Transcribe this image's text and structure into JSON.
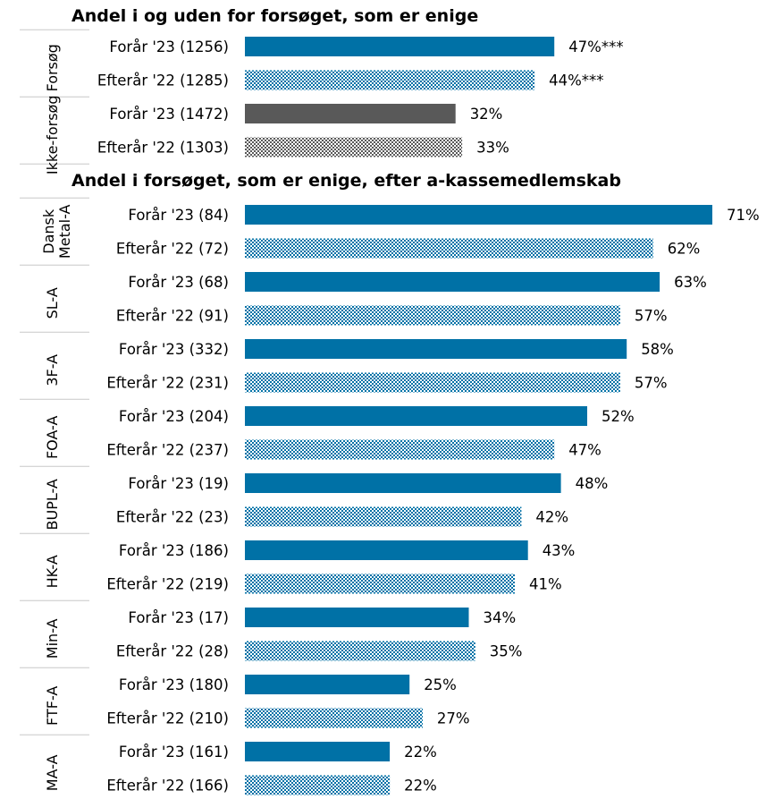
{
  "colors": {
    "forsog": "#0071a6",
    "ikke_forsog": "#595959",
    "pattern_light": "#ffffff"
  },
  "chart_data": {
    "type": "bar",
    "orientation": "horizontal",
    "unit": "%",
    "xlim": [
      0,
      71
    ],
    "grid": false,
    "panels": [
      {
        "title": "Andel i og uden for forsøget, som er enige",
        "groups": [
          {
            "name": "Forsøg",
            "color_key": "forsog",
            "bars": [
              {
                "label": "Forår '23 (1256)",
                "value": 47,
                "value_label": "47%***",
                "pattern": "solid"
              },
              {
                "label": "Efterår '22 (1285)",
                "value": 44,
                "value_label": "44%***",
                "pattern": "checker"
              }
            ]
          },
          {
            "name": "Ikke-forsøg",
            "color_key": "ikke_forsog",
            "bars": [
              {
                "label": "Forår '23 (1472)",
                "value": 32,
                "value_label": "32%",
                "pattern": "solid"
              },
              {
                "label": "Efterår '22 (1303)",
                "value": 33,
                "value_label": "33%",
                "pattern": "checker"
              }
            ]
          }
        ]
      },
      {
        "title": "Andel i forsøget, som er enige, efter a-kassemedlemskab",
        "groups": [
          {
            "name": "Dansk Metal-A",
            "name_lines": [
              "Dansk",
              "Metal-A"
            ],
            "color_key": "forsog",
            "bars": [
              {
                "label": "Forår '23 (84)",
                "value": 71,
                "value_label": "71%",
                "pattern": "solid"
              },
              {
                "label": "Efterår '22 (72)",
                "value": 62,
                "value_label": "62%",
                "pattern": "checker"
              }
            ]
          },
          {
            "name": "SL-A",
            "color_key": "forsog",
            "bars": [
              {
                "label": "Forår '23 (68)",
                "value": 63,
                "value_label": "63%",
                "pattern": "solid"
              },
              {
                "label": "Efterår '22 (91)",
                "value": 57,
                "value_label": "57%",
                "pattern": "checker"
              }
            ]
          },
          {
            "name": "3F-A",
            "color_key": "forsog",
            "bars": [
              {
                "label": "Forår '23 (332)",
                "value": 58,
                "value_label": "58%",
                "pattern": "solid"
              },
              {
                "label": "Efterår '22 (231)",
                "value": 57,
                "value_label": "57%",
                "pattern": "checker"
              }
            ]
          },
          {
            "name": "FOA-A",
            "color_key": "forsog",
            "bars": [
              {
                "label": "Forår '23 (204)",
                "value": 52,
                "value_label": "52%",
                "pattern": "solid"
              },
              {
                "label": "Efterår '22 (237)",
                "value": 47,
                "value_label": "47%",
                "pattern": "checker"
              }
            ]
          },
          {
            "name": "BUPL-A",
            "color_key": "forsog",
            "bars": [
              {
                "label": "Forår '23 (19)",
                "value": 48,
                "value_label": "48%",
                "pattern": "solid"
              },
              {
                "label": "Efterår '22 (23)",
                "value": 42,
                "value_label": "42%",
                "pattern": "checker"
              }
            ]
          },
          {
            "name": "HK-A",
            "color_key": "forsog",
            "bars": [
              {
                "label": "Forår '23 (186)",
                "value": 43,
                "value_label": "43%",
                "pattern": "solid"
              },
              {
                "label": "Efterår '22 (219)",
                "value": 41,
                "value_label": "41%",
                "pattern": "checker"
              }
            ]
          },
          {
            "name": "Min-A",
            "color_key": "forsog",
            "bars": [
              {
                "label": "Forår '23 (17)",
                "value": 34,
                "value_label": "34%",
                "pattern": "solid"
              },
              {
                "label": "Efterår '22 (28)",
                "value": 35,
                "value_label": "35%",
                "pattern": "checker"
              }
            ]
          },
          {
            "name": "FTF-A",
            "color_key": "forsog",
            "bars": [
              {
                "label": "Forår '23 (180)",
                "value": 25,
                "value_label": "25%",
                "pattern": "solid"
              },
              {
                "label": "Efterår '22 (210)",
                "value": 27,
                "value_label": "27%",
                "pattern": "checker"
              }
            ]
          },
          {
            "name": "MA-A",
            "color_key": "forsog",
            "bars": [
              {
                "label": "Forår '23 (161)",
                "value": 22,
                "value_label": "22%",
                "pattern": "solid"
              },
              {
                "label": "Efterår '22 (166)",
                "value": 22,
                "value_label": "22%",
                "pattern": "checker"
              }
            ]
          }
        ]
      }
    ]
  }
}
